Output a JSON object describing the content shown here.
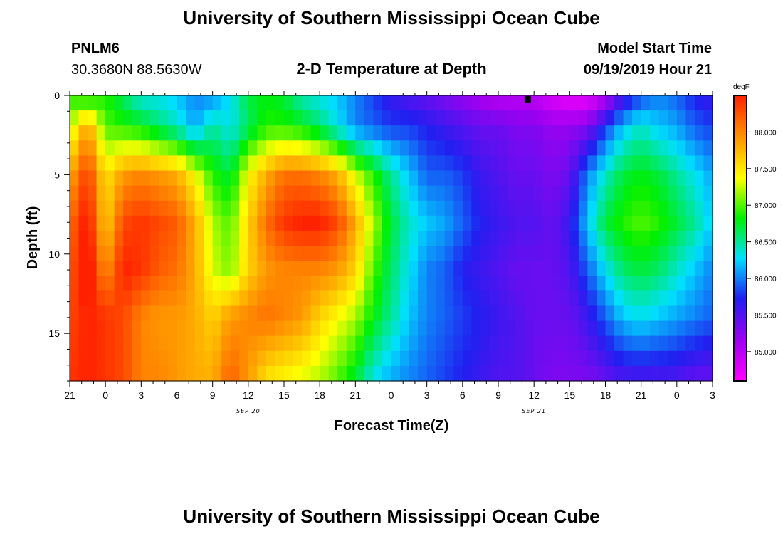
{
  "header": {
    "title": "University of Southern Mississippi Ocean Cube",
    "station": "PNLM6",
    "coords": "30.3680N 88.5630W",
    "chart_title": "2-D Temperature at Depth",
    "model_label": "Model Start Time",
    "model_time": "09/19/2019 Hour 21"
  },
  "footer": {
    "title": "University of Southern Mississippi Ocean Cube"
  },
  "chart_data": {
    "type": "heatmap",
    "title": "2-D Temperature at Depth",
    "xlabel": "Forecast Time(Z)",
    "ylabel": "Depth (ft)",
    "x_tick_labels": [
      "21",
      "0",
      "3",
      "6",
      "9",
      "12",
      "15",
      "18",
      "21",
      "0",
      "3",
      "6",
      "9",
      "12",
      "15",
      "18",
      "21",
      "0",
      "3"
    ],
    "date_labels": [
      {
        "label": "SEP 20",
        "at_tick": 5
      },
      {
        "label": "SEP 21",
        "at_tick": 13
      }
    ],
    "y_ticks": [
      0,
      5,
      10,
      15
    ],
    "ylim": [
      0,
      18
    ],
    "x_range_hours": [
      0,
      54
    ],
    "colorbar": {
      "unit": "degF",
      "ticks": [
        "88.000",
        "87.500",
        "87.000",
        "86.500",
        "86.000",
        "85.500",
        "85.000"
      ],
      "range": [
        84.6,
        88.5
      ],
      "colors": [
        "#ff00ff",
        "#a000f0",
        "#2020f0",
        "#00e0ff",
        "#00f000",
        "#ffff00",
        "#ff9000",
        "#ff2000"
      ]
    },
    "cols_hours": [
      0,
      1.5,
      3,
      4.5,
      6,
      7.5,
      9,
      10.5,
      12,
      13.5,
      15,
      16.5,
      18,
      19.5,
      21,
      22.5,
      24,
      25.5,
      27,
      28.5,
      30,
      31.5,
      33,
      34.5,
      36,
      37.5,
      39,
      40.5,
      42,
      43.5,
      45,
      46.5,
      48,
      49.5,
      51,
      52.5,
      54
    ],
    "depth_rows_ft": [
      0,
      2,
      5,
      8,
      11,
      14,
      18
    ],
    "temperature_degF": [
      [
        86.9,
        86.7,
        86.9,
        86.6,
        86.3,
        86.3,
        86.2,
        86.0,
        86.0,
        86.3,
        86.7,
        86.8,
        86.7,
        86.4,
        86.3,
        86.2,
        86.0,
        85.8,
        85.6,
        85.5,
        85.4,
        85.3,
        85.2,
        85.1,
        85.0,
        85.0,
        85.0,
        84.8,
        84.7,
        84.7,
        85.0,
        85.5,
        85.8,
        86.0,
        85.9,
        85.7,
        85.6
      ],
      [
        87.2,
        87.9,
        87.0,
        86.9,
        86.8,
        86.6,
        86.4,
        86.1,
        86.5,
        86.3,
        86.6,
        86.9,
        86.9,
        86.8,
        86.6,
        86.3,
        86.0,
        85.9,
        85.8,
        85.8,
        85.7,
        85.6,
        85.5,
        85.4,
        85.4,
        85.3,
        85.3,
        85.2,
        85.2,
        85.3,
        85.8,
        86.2,
        86.4,
        86.2,
        86.1,
        85.9,
        85.8
      ],
      [
        87.8,
        88.4,
        87.5,
        87.9,
        88.0,
        87.9,
        87.8,
        87.4,
        86.9,
        86.7,
        87.4,
        87.8,
        88.1,
        88.1,
        88.0,
        87.8,
        87.3,
        86.9,
        86.5,
        86.2,
        85.9,
        85.9,
        85.8,
        85.6,
        85.5,
        85.4,
        85.4,
        85.3,
        85.4,
        86.0,
        86.4,
        86.7,
        86.8,
        86.7,
        86.5,
        86.3,
        86.1
      ],
      [
        88.1,
        88.6,
        87.6,
        88.3,
        88.4,
        88.3,
        88.2,
        87.8,
        87.2,
        87.0,
        87.6,
        88.1,
        88.4,
        88.5,
        88.5,
        88.3,
        87.8,
        87.2,
        86.7,
        86.4,
        86.2,
        86.1,
        85.9,
        85.7,
        85.6,
        85.5,
        85.5,
        85.4,
        85.6,
        86.2,
        86.7,
        86.9,
        87.0,
        86.9,
        86.7,
        86.5,
        86.2
      ],
      [
        88.2,
        88.7,
        87.9,
        88.5,
        88.4,
        88.2,
        88.1,
        87.8,
        87.3,
        87.1,
        87.6,
        87.9,
        88.0,
        88.0,
        88.0,
        87.9,
        87.6,
        87.0,
        86.6,
        86.3,
        86.0,
        85.9,
        85.7,
        85.6,
        85.5,
        85.4,
        85.4,
        85.4,
        85.5,
        85.9,
        86.3,
        86.6,
        86.7,
        86.6,
        86.4,
        86.2,
        86.0
      ],
      [
        88.3,
        88.5,
        88.4,
        88.3,
        88.0,
        87.9,
        87.9,
        87.8,
        87.6,
        87.9,
        88.0,
        88.1,
        88.0,
        87.9,
        87.6,
        87.4,
        87.2,
        86.8,
        86.5,
        86.2,
        86.0,
        85.9,
        85.8,
        85.7,
        85.6,
        85.5,
        85.4,
        85.4,
        85.4,
        85.6,
        85.9,
        86.2,
        86.3,
        86.2,
        86.1,
        86.0,
        85.9
      ],
      [
        88.4,
        88.5,
        88.4,
        88.3,
        88.0,
        88.0,
        87.9,
        87.8,
        87.8,
        88.2,
        87.9,
        87.5,
        87.4,
        87.3,
        87.2,
        87.0,
        86.7,
        86.3,
        86.1,
        86.0,
        85.9,
        85.8,
        85.7,
        85.6,
        85.5,
        85.5,
        85.4,
        85.3,
        85.3,
        85.3,
        85.4,
        85.5,
        85.5,
        85.5,
        85.5,
        85.4,
        85.4
      ]
    ],
    "marker": {
      "hour": 38.5,
      "depth_ft": 0.2
    }
  }
}
